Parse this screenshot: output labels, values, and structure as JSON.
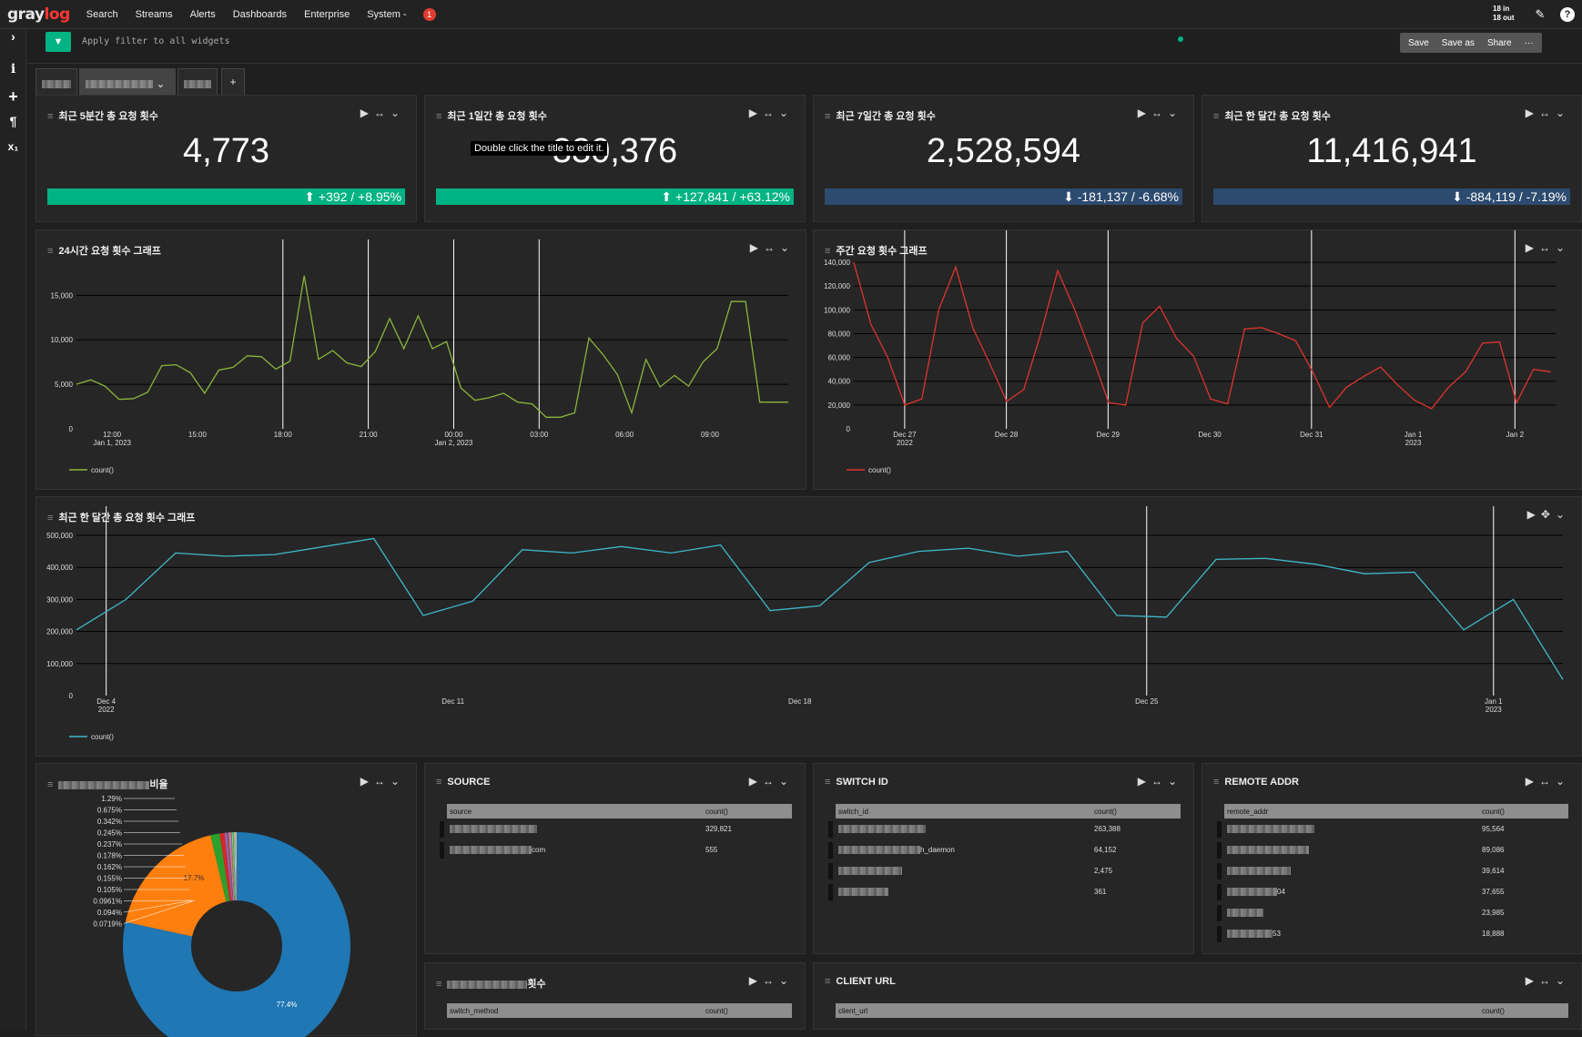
{
  "nav": {
    "items": [
      "Search",
      "Streams",
      "Alerts",
      "Dashboards",
      "Enterprise",
      "System -"
    ],
    "notifications": "1",
    "throughput_in": "18 in",
    "throughput_out": "18 out"
  },
  "filter": {
    "placeholder": "Apply filter to all widgets",
    "save": "Save",
    "save_as": "Save as",
    "share": "Share",
    "more": "···"
  },
  "tabs": {
    "add": "+"
  },
  "stats": [
    {
      "title": "최근 5분간 총 요청 횟수",
      "value": "4,773",
      "trend": "+392 / +8.95%",
      "dir": "up"
    },
    {
      "title": "최근 1일간 총 요청 횟수",
      "value": "330,376",
      "trend": "+127,841 / +63.12%",
      "dir": "up",
      "tooltip": "Double click the title to edit it."
    },
    {
      "title": "최근 7일간 총 요청 횟수",
      "value": "2,528,594",
      "trend": "-181,137 / -6.68%",
      "dir": "down"
    },
    {
      "title": "최근 한 달간 총 요청 횟수",
      "value": "11,416,941",
      "trend": "-884,119 / -7.19%",
      "dir": "down"
    }
  ],
  "charts": {
    "daily": {
      "title": "24시간 요청 횟수 그래프",
      "legend": "count()",
      "color": "#8ab53a"
    },
    "weekly": {
      "title": "주간 요청 횟수 그래프",
      "legend": "count()",
      "color": "#e0332f"
    },
    "monthly": {
      "title": "최근 한 달간 총 요청 횟수 그래프",
      "legend": "count()",
      "color": "#3fb8c8"
    }
  },
  "chart_data": [
    {
      "type": "line",
      "title": "24시간 요청 횟수 그래프",
      "legend": [
        "count()"
      ],
      "ylim": [
        0,
        18000
      ],
      "yticks": [
        "0",
        "5,000",
        "10,000",
        "15,000"
      ],
      "xticks": [
        {
          "label": "12:00",
          "sub": "Jan 1, 2023",
          "h": 12
        },
        {
          "label": "15:00",
          "h": 15
        },
        {
          "label": "18:00",
          "h": 18
        },
        {
          "label": "21:00",
          "h": 21
        },
        {
          "label": "00:00",
          "sub": "Jan 2, 2023",
          "h": 24
        },
        {
          "label": "03:00",
          "h": 27
        },
        {
          "label": "06:00",
          "h": 30
        },
        {
          "label": "09:00",
          "h": 33
        }
      ],
      "xrange": [
        10.75,
        35.75
      ],
      "vlines": [
        18,
        21,
        24,
        27
      ],
      "x": [
        10.75,
        11.25,
        11.75,
        12.25,
        12.75,
        13.25,
        13.75,
        14.25,
        14.75,
        15.25,
        15.75,
        16.25,
        16.75,
        17.25,
        17.75,
        18.25,
        18.75,
        19.25,
        19.75,
        20.25,
        20.75,
        21.25,
        21.75,
        22.25,
        22.75,
        23.25,
        23.75,
        24.25,
        24.75,
        25.25,
        25.75,
        26.25,
        26.75,
        27.25,
        27.75,
        28.25,
        28.75,
        29.25,
        29.75,
        30.25,
        30.75,
        31.25,
        31.75,
        32.25,
        32.75,
        33.25,
        33.75,
        34.25,
        34.75,
        35.25,
        35.75
      ],
      "values": [
        5000,
        5500,
        4800,
        3300,
        3400,
        4100,
        7100,
        7200,
        6300,
        4000,
        6600,
        6900,
        8200,
        8100,
        6700,
        7600,
        17200,
        7800,
        8800,
        7400,
        7000,
        8700,
        12400,
        9000,
        12700,
        9000,
        9800,
        4600,
        3200,
        3500,
        4000,
        3000,
        2800,
        1300,
        1300,
        1800,
        10200,
        8300,
        6100,
        1800,
        7800,
        4700,
        6000,
        4800,
        7500,
        9000,
        14300,
        14300,
        3000,
        3000,
        3000
      ],
      "series": [
        {
          "name": "count()"
        }
      ]
    },
    {
      "type": "line",
      "title": "주간 요청 횟수 그래프",
      "legend": [
        "count()"
      ],
      "ylim": [
        0,
        150000
      ],
      "yticks": [
        "0",
        "20,000",
        "40,000",
        "60,000",
        "80,000",
        "100,000",
        "120,000",
        "140,000"
      ],
      "xticks": [
        {
          "label": "Dec 27",
          "sub": "2022",
          "d": 0
        },
        {
          "label": "Dec 28",
          "d": 1
        },
        {
          "label": "Dec 29",
          "d": 2
        },
        {
          "label": "Dec 30",
          "d": 3
        },
        {
          "label": "Dec 31",
          "d": 4
        },
        {
          "label": "Jan 1",
          "sub": "2023",
          "d": 5
        },
        {
          "label": "Jan 2",
          "d": 6
        }
      ],
      "xrange": [
        -0.5,
        6.4
      ],
      "vlines": [
        0,
        1,
        2,
        4,
        6
      ],
      "values": [
        140000,
        88000,
        60000,
        20000,
        25000,
        100000,
        136000,
        85000,
        55000,
        23000,
        33000,
        80000,
        133000,
        100000,
        62000,
        22000,
        20000,
        89000,
        103000,
        76000,
        61000,
        25000,
        21000,
        84000,
        85000,
        80000,
        74000,
        48000,
        18000,
        35000,
        44000,
        52000,
        37000,
        24000,
        17000,
        35000,
        48000,
        72000,
        73000,
        22000,
        50000,
        48000
      ],
      "series": [
        {
          "name": "count()"
        }
      ]
    },
    {
      "type": "line",
      "title": "최근 한 달간 총 요청 횟수 그래프",
      "legend": [
        "count()"
      ],
      "ylim": [
        0,
        500000
      ],
      "yticks": [
        "0",
        "100,000",
        "200,000",
        "300,000",
        "400,000",
        "500,000"
      ],
      "xticks": [
        {
          "label": "Dec 4",
          "sub": "2022",
          "d": 0
        },
        {
          "label": "Dec 11",
          "d": 7
        },
        {
          "label": "Dec 18",
          "d": 14
        },
        {
          "label": "Dec 25",
          "d": 21
        },
        {
          "label": "Jan 1",
          "sub": "2023",
          "d": 28
        }
      ],
      "xrange": [
        -0.6,
        29.4
      ],
      "vlines": [
        0,
        21,
        28
      ],
      "values": [
        205000,
        300000,
        445000,
        435000,
        440000,
        465000,
        490000,
        250000,
        295000,
        455000,
        445000,
        465000,
        445000,
        470000,
        265000,
        280000,
        415000,
        450000,
        460000,
        435000,
        450000,
        250000,
        245000,
        425000,
        428000,
        410000,
        380000,
        385000,
        205000,
        300000,
        50000
      ],
      "series": [
        {
          "name": "count()"
        }
      ]
    },
    {
      "type": "pie",
      "title": "비율",
      "values": [
        77.4,
        17.7,
        1.29,
        0.675,
        0.342,
        0.245,
        0.237,
        0.178,
        0.162,
        0.155,
        0.105,
        0.0961,
        0.094,
        0.0719
      ],
      "labels": [
        "77.4%",
        "17.7%",
        "1.29%",
        "0.675%",
        "0.342%",
        "0.245%",
        "0.237%",
        "0.178%",
        "0.162%",
        "0.155%",
        "0.105%",
        "0.0961%",
        "0.094%",
        "0.0719%"
      ]
    }
  ],
  "pie": {
    "title_suffix": "비율",
    "colors": [
      "#1f77b4",
      "#ff7f0e",
      "#2ca02c",
      "#d62728",
      "#9467bd",
      "#8c564b",
      "#e377c2",
      "#7f7f7f",
      "#bcbd22",
      "#17becf",
      "#aec7e8",
      "#ffbb78",
      "#98df8a",
      "#ff9896"
    ]
  },
  "tables": [
    {
      "title": "SOURCE",
      "col1": "source",
      "col2": "count()",
      "rows": [
        {
          "suffix": "",
          "count": "329,821"
        },
        {
          "suffix": "com",
          "count": "555"
        }
      ]
    },
    {
      "title": "SWITCH ID",
      "col1": "switch_id",
      "col2": "count()",
      "rows": [
        {
          "suffix": "",
          "count": "263,388"
        },
        {
          "suffix": "h_daemon",
          "count": "64,152"
        },
        {
          "suffix": "",
          "count": "2,475"
        },
        {
          "suffix": "",
          "count": "361"
        }
      ]
    },
    {
      "title": "REMOTE ADDR",
      "col1": "remote_addr",
      "col2": "count()",
      "rows": [
        {
          "suffix": "",
          "count": "95,564"
        },
        {
          "suffix": "",
          "count": "89,086"
        },
        {
          "suffix": "",
          "count": "39,614"
        },
        {
          "suffix": "04",
          "count": "37,655"
        },
        {
          "suffix": "",
          "count": "23,985"
        },
        {
          "suffix": "53",
          "count": "18,888"
        }
      ]
    },
    {
      "title": "횟수",
      "col1": "switch_method",
      "col2": "count()",
      "rows": []
    },
    {
      "title": "CLIENT URL",
      "col1": "client_url",
      "col2": "count()",
      "rows": []
    }
  ]
}
